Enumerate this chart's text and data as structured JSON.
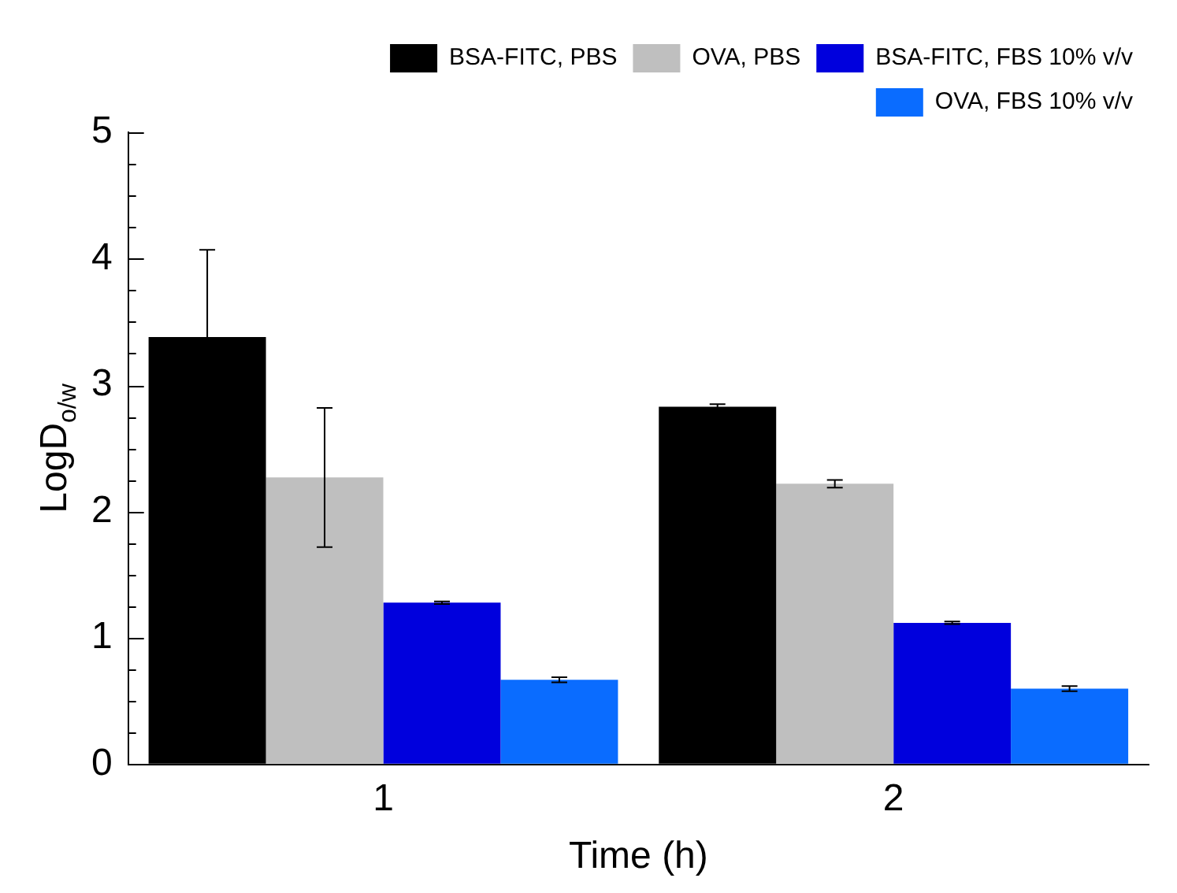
{
  "chart_data": {
    "type": "bar",
    "xlabel": "Time (h)",
    "ylabel": "LogD$_{o/w}$",
    "categories": [
      "1",
      "2"
    ],
    "series": [
      {
        "name": "BSA-FITC, PBS",
        "color": "#000000",
        "values": [
          3.38,
          2.83
        ],
        "errors": [
          0.69,
          0.02
        ]
      },
      {
        "name": "OVA, PBS",
        "color": "#bfbfbf",
        "values": [
          2.27,
          2.22
        ],
        "errors": [
          0.55,
          0.03
        ]
      },
      {
        "name": "BSA-FITC, FBS 10% v/v",
        "color": "#0000dd",
        "values": [
          1.28,
          1.12
        ],
        "errors": [
          0.01,
          0.01
        ]
      },
      {
        "name": "OVA, FBS 10% v/v",
        "color": "#0a6cff",
        "values": [
          0.67,
          0.6
        ],
        "errors": [
          0.02,
          0.02
        ]
      }
    ],
    "ylim": [
      0,
      5
    ],
    "yticks": [
      0,
      {
        "value": 0.25,
        "label": null
      },
      {
        "value": 0.5,
        "label": null
      },
      {
        "value": 0.75,
        "label": null
      },
      1,
      {
        "value": 1.25,
        "label": null
      },
      {
        "value": 1.5,
        "label": null
      },
      {
        "value": 1.75,
        "label": null
      },
      2,
      {
        "value": 2.25,
        "label": null
      },
      {
        "value": 2.5,
        "label": null
      },
      {
        "value": 2.75,
        "label": null
      },
      3,
      {
        "value": 3.25,
        "label": null
      },
      {
        "value": 3.5,
        "label": null
      },
      {
        "value": 3.75,
        "label": null
      },
      4,
      {
        "value": 4.25,
        "label": null
      },
      {
        "value": 4.5,
        "label": null
      },
      {
        "value": 4.75,
        "label": null
      },
      5
    ],
    "grid": false,
    "legend": "top right"
  }
}
